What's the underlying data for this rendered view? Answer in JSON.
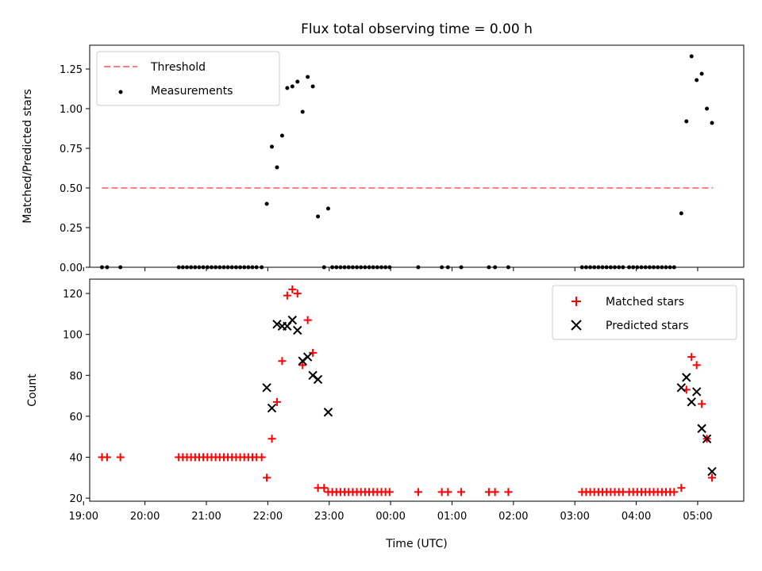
{
  "chart_data": [
    {
      "type": "scatter",
      "title": "Flux total observing time = 0.00 h",
      "ylabel": "Matched/Predicted stars",
      "xlim": [
        "19:06",
        "05:45"
      ],
      "ylim": [
        0,
        1.4
      ],
      "yticks": [
        "0.00",
        "0.25",
        "0.50",
        "0.75",
        "1.00",
        "1.25"
      ],
      "legend_position": "top-left",
      "series": [
        {
          "name": "Threshold",
          "kind": "dashed-line",
          "color": "#ff7f7f",
          "points": [
            [
              "19:18",
              0.5
            ],
            [
              "05:15",
              0.5
            ]
          ]
        },
        {
          "name": "Measurements",
          "kind": "dots",
          "color": "#000000",
          "points": [
            [
              "19:18",
              0
            ],
            [
              "19:23",
              0
            ],
            [
              "19:36",
              0
            ],
            [
              "20:33",
              0
            ],
            [
              "20:37",
              0
            ],
            [
              "20:41",
              0
            ],
            [
              "20:45",
              0
            ],
            [
              "20:49",
              0
            ],
            [
              "20:53",
              0
            ],
            [
              "20:57",
              0
            ],
            [
              "21:01",
              0
            ],
            [
              "21:05",
              0
            ],
            [
              "21:09",
              0
            ],
            [
              "21:13",
              0
            ],
            [
              "21:17",
              0
            ],
            [
              "21:21",
              0
            ],
            [
              "21:25",
              0
            ],
            [
              "21:29",
              0
            ],
            [
              "21:33",
              0
            ],
            [
              "21:37",
              0
            ],
            [
              "21:41",
              0
            ],
            [
              "21:45",
              0
            ],
            [
              "21:49",
              0
            ],
            [
              "21:54",
              0
            ],
            [
              "21:59",
              0.4
            ],
            [
              "22:04",
              0.76
            ],
            [
              "22:09",
              0.63
            ],
            [
              "22:14",
              0.83
            ],
            [
              "22:19",
              1.13
            ],
            [
              "22:24",
              1.14
            ],
            [
              "22:29",
              1.17
            ],
            [
              "22:34",
              0.98
            ],
            [
              "22:39",
              1.2
            ],
            [
              "22:44",
              1.14
            ],
            [
              "22:49",
              0.32
            ],
            [
              "22:55",
              0
            ],
            [
              "22:59",
              0.37
            ],
            [
              "23:03",
              0
            ],
            [
              "23:07",
              0
            ],
            [
              "23:11",
              0
            ],
            [
              "23:15",
              0
            ],
            [
              "23:19",
              0
            ],
            [
              "23:23",
              0
            ],
            [
              "23:27",
              0
            ],
            [
              "23:31",
              0
            ],
            [
              "23:35",
              0
            ],
            [
              "23:39",
              0
            ],
            [
              "23:43",
              0
            ],
            [
              "23:47",
              0
            ],
            [
              "23:51",
              0
            ],
            [
              "23:55",
              0
            ],
            [
              "23:59",
              0
            ],
            [
              "00:27",
              0
            ],
            [
              "00:50",
              0
            ],
            [
              "00:56",
              0
            ],
            [
              "01:09",
              0
            ],
            [
              "01:36",
              0
            ],
            [
              "01:42",
              0
            ],
            [
              "01:55",
              0
            ],
            [
              "03:07",
              0
            ],
            [
              "03:11",
              0
            ],
            [
              "03:15",
              0
            ],
            [
              "03:19",
              0
            ],
            [
              "03:23",
              0
            ],
            [
              "03:27",
              0
            ],
            [
              "03:31",
              0
            ],
            [
              "03:35",
              0
            ],
            [
              "03:39",
              0
            ],
            [
              "03:43",
              0
            ],
            [
              "03:47",
              0
            ],
            [
              "03:53",
              0
            ],
            [
              "03:57",
              0
            ],
            [
              "04:01",
              0
            ],
            [
              "04:05",
              0
            ],
            [
              "04:09",
              0
            ],
            [
              "04:13",
              0
            ],
            [
              "04:17",
              0
            ],
            [
              "04:21",
              0
            ],
            [
              "04:25",
              0
            ],
            [
              "04:29",
              0
            ],
            [
              "04:33",
              0
            ],
            [
              "04:37",
              0
            ],
            [
              "04:44",
              0.34
            ],
            [
              "04:49",
              0.92
            ],
            [
              "04:54",
              1.33
            ],
            [
              "04:59",
              1.18
            ],
            [
              "05:04",
              1.22
            ],
            [
              "05:09",
              1.0
            ],
            [
              "05:14",
              0.91
            ]
          ]
        }
      ]
    },
    {
      "type": "scatter",
      "xlabel": "Time (UTC)",
      "ylabel": "Count",
      "xlim": [
        "19:06",
        "05:45"
      ],
      "ylim": [
        18.5,
        127
      ],
      "yticks": [
        "20",
        "40",
        "60",
        "80",
        "100",
        "120"
      ],
      "xticks": [
        "19:00",
        "20:00",
        "21:00",
        "22:00",
        "23:00",
        "00:00",
        "01:00",
        "02:00",
        "03:00",
        "04:00",
        "05:00"
      ],
      "legend_position": "top-right",
      "series": [
        {
          "name": "Matched stars",
          "kind": "plus",
          "color": "#ff0000",
          "points": [
            [
              "19:18",
              40
            ],
            [
              "19:23",
              40
            ],
            [
              "19:36",
              40
            ],
            [
              "20:33",
              40
            ],
            [
              "20:37",
              40
            ],
            [
              "20:41",
              40
            ],
            [
              "20:45",
              40
            ],
            [
              "20:49",
              40
            ],
            [
              "20:53",
              40
            ],
            [
              "20:57",
              40
            ],
            [
              "21:01",
              40
            ],
            [
              "21:05",
              40
            ],
            [
              "21:09",
              40
            ],
            [
              "21:13",
              40
            ],
            [
              "21:17",
              40
            ],
            [
              "21:21",
              40
            ],
            [
              "21:25",
              40
            ],
            [
              "21:29",
              40
            ],
            [
              "21:33",
              40
            ],
            [
              "21:37",
              40
            ],
            [
              "21:41",
              40
            ],
            [
              "21:45",
              40
            ],
            [
              "21:49",
              40
            ],
            [
              "21:54",
              40
            ],
            [
              "21:59",
              30
            ],
            [
              "22:04",
              49
            ],
            [
              "22:09",
              67
            ],
            [
              "22:14",
              87
            ],
            [
              "22:19",
              119
            ],
            [
              "22:24",
              122
            ],
            [
              "22:29",
              120
            ],
            [
              "22:34",
              85
            ],
            [
              "22:39",
              107
            ],
            [
              "22:44",
              91
            ],
            [
              "22:49",
              25
            ],
            [
              "22:55",
              25
            ],
            [
              "22:59",
              23
            ],
            [
              "23:03",
              23
            ],
            [
              "23:07",
              23
            ],
            [
              "23:11",
              23
            ],
            [
              "23:15",
              23
            ],
            [
              "23:19",
              23
            ],
            [
              "23:23",
              23
            ],
            [
              "23:27",
              23
            ],
            [
              "23:31",
              23
            ],
            [
              "23:35",
              23
            ],
            [
              "23:39",
              23
            ],
            [
              "23:43",
              23
            ],
            [
              "23:47",
              23
            ],
            [
              "23:51",
              23
            ],
            [
              "23:55",
              23
            ],
            [
              "23:59",
              23
            ],
            [
              "00:27",
              23
            ],
            [
              "00:50",
              23
            ],
            [
              "00:56",
              23
            ],
            [
              "01:09",
              23
            ],
            [
              "01:36",
              23
            ],
            [
              "01:42",
              23
            ],
            [
              "01:55",
              23
            ],
            [
              "03:07",
              23
            ],
            [
              "03:11",
              23
            ],
            [
              "03:15",
              23
            ],
            [
              "03:19",
              23
            ],
            [
              "03:23",
              23
            ],
            [
              "03:27",
              23
            ],
            [
              "03:31",
              23
            ],
            [
              "03:35",
              23
            ],
            [
              "03:39",
              23
            ],
            [
              "03:43",
              23
            ],
            [
              "03:47",
              23
            ],
            [
              "03:53",
              23
            ],
            [
              "03:57",
              23
            ],
            [
              "04:01",
              23
            ],
            [
              "04:05",
              23
            ],
            [
              "04:09",
              23
            ],
            [
              "04:13",
              23
            ],
            [
              "04:17",
              23
            ],
            [
              "04:21",
              23
            ],
            [
              "04:25",
              23
            ],
            [
              "04:29",
              23
            ],
            [
              "04:33",
              23
            ],
            [
              "04:37",
              23
            ],
            [
              "04:44",
              25
            ],
            [
              "04:49",
              73
            ],
            [
              "04:54",
              89
            ],
            [
              "04:59",
              85
            ],
            [
              "05:04",
              66
            ],
            [
              "05:09",
              49
            ],
            [
              "05:14",
              30
            ]
          ]
        },
        {
          "name": "Predicted stars",
          "kind": "x",
          "color": "#000000",
          "points": [
            [
              "21:59",
              74
            ],
            [
              "22:04",
              64
            ],
            [
              "22:09",
              105
            ],
            [
              "22:14",
              104
            ],
            [
              "22:19",
              104
            ],
            [
              "22:24",
              107
            ],
            [
              "22:29",
              102
            ],
            [
              "22:34",
              87
            ],
            [
              "22:39",
              89
            ],
            [
              "22:44",
              80
            ],
            [
              "22:49",
              78
            ],
            [
              "22:59",
              62
            ],
            [
              "04:44",
              74
            ],
            [
              "04:49",
              79
            ],
            [
              "04:54",
              67
            ],
            [
              "04:59",
              72
            ],
            [
              "05:04",
              54
            ],
            [
              "05:09",
              49
            ],
            [
              "05:14",
              33
            ]
          ]
        }
      ]
    }
  ]
}
